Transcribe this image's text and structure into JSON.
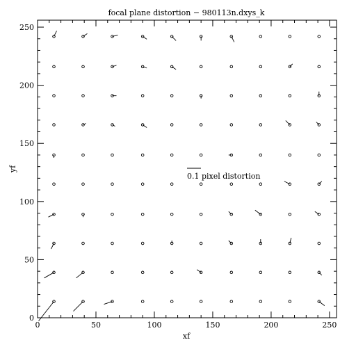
{
  "chart_data": {
    "type": "scatter",
    "title": "focal plane distortion − 980113n.dxys_k",
    "xlabel": "xf",
    "ylabel": "yf",
    "xlim": [
      0,
      256
    ],
    "ylim": [
      0,
      256
    ],
    "xticks": [
      0,
      50,
      100,
      150,
      200,
      250
    ],
    "yticks": [
      0,
      50,
      100,
      150,
      200,
      250
    ],
    "grid": false,
    "scale_bar_label": "0.1 pixel distortion",
    "scale_bar_length": 0.1,
    "grid_x": [
      14,
      39,
      64,
      90,
      115,
      140,
      166,
      191,
      216,
      241
    ],
    "grid_y": [
      14,
      39,
      64,
      89,
      115,
      140,
      166,
      191,
      216,
      242
    ],
    "vectors": [
      [
        [
          -0.11,
          -0.14
        ],
        [
          -0.07,
          -0.07
        ],
        [
          -0.06,
          -0.02
        ],
        [
          0.0,
          0.0
        ],
        [
          0.0,
          0.0
        ],
        [
          0.0,
          0.0
        ],
        [
          0.0,
          0.0
        ],
        [
          0.0,
          0.0
        ],
        [
          0.0,
          0.0
        ],
        [
          0.04,
          -0.03
        ]
      ],
      [
        [
          -0.07,
          -0.04
        ],
        [
          -0.05,
          -0.04
        ],
        [
          0.0,
          0.0
        ],
        [
          0.0,
          0.0
        ],
        [
          0.0,
          0.0
        ],
        [
          -0.03,
          0.02
        ],
        [
          0.0,
          0.0
        ],
        [
          0.0,
          0.0
        ],
        [
          0.0,
          0.0
        ],
        [
          0.02,
          -0.02
        ]
      ],
      [
        [
          -0.02,
          -0.04
        ],
        [
          0.0,
          0.0
        ],
        [
          0.0,
          0.0
        ],
        [
          0.0,
          0.0
        ],
        [
          0.0,
          0.02
        ],
        [
          0.0,
          0.0
        ],
        [
          -0.02,
          0.02
        ],
        [
          0.0,
          0.03
        ],
        [
          0.01,
          0.04
        ],
        [
          0.0,
          0.0
        ]
      ],
      [
        [
          -0.04,
          -0.02
        ],
        [
          0.0,
          -0.02
        ],
        [
          0.0,
          0.0
        ],
        [
          0.0,
          0.0
        ],
        [
          0.0,
          0.0
        ],
        [
          0.0,
          0.0
        ],
        [
          -0.02,
          0.02
        ],
        [
          -0.04,
          0.03
        ],
        [
          0.0,
          0.0
        ],
        [
          -0.03,
          0.02
        ]
      ],
      [
        [
          0.0,
          0.0
        ],
        [
          0.0,
          0.0
        ],
        [
          0.0,
          0.0
        ],
        [
          0.0,
          0.0
        ],
        [
          0.0,
          0.0
        ],
        [
          0.0,
          0.0
        ],
        [
          0.0,
          0.0
        ],
        [
          0.0,
          0.0
        ],
        [
          -0.04,
          0.02
        ],
        [
          0.02,
          0.02
        ]
      ],
      [
        [
          0.0,
          -0.02
        ],
        [
          0.0,
          0.0
        ],
        [
          0.0,
          0.0
        ],
        [
          0.0,
          0.0
        ],
        [
          0.0,
          0.0
        ],
        [
          0.0,
          0.0
        ],
        [
          -0.02,
          0.0
        ],
        [
          0.0,
          0.0
        ],
        [
          0.0,
          0.0
        ],
        [
          0.0,
          0.0
        ]
      ],
      [
        [
          0.0,
          0.0
        ],
        [
          0.02,
          0.01
        ],
        [
          0.02,
          -0.01
        ],
        [
          0.03,
          -0.02
        ],
        [
          0.0,
          0.0
        ],
        [
          0.0,
          0.0
        ],
        [
          0.0,
          0.0
        ],
        [
          0.0,
          0.0
        ],
        [
          -0.03,
          0.03
        ],
        [
          -0.02,
          0.02
        ]
      ],
      [
        [
          0.0,
          0.0
        ],
        [
          0.0,
          0.0
        ],
        [
          0.03,
          0.0
        ],
        [
          0.0,
          0.0
        ],
        [
          0.0,
          0.0
        ],
        [
          0.0,
          -0.02
        ],
        [
          0.0,
          0.0
        ],
        [
          0.0,
          0.0
        ],
        [
          0.0,
          0.0
        ],
        [
          0.0,
          0.03
        ]
      ],
      [
        [
          0.0,
          0.0
        ],
        [
          0.0,
          0.0
        ],
        [
          0.03,
          0.01
        ],
        [
          0.03,
          -0.01
        ],
        [
          0.03,
          -0.02
        ],
        [
          0.0,
          0.0
        ],
        [
          0.0,
          0.0
        ],
        [
          0.0,
          0.0
        ],
        [
          0.02,
          0.02
        ],
        [
          0.0,
          0.0
        ]
      ],
      [
        [
          0.02,
          0.04
        ],
        [
          0.03,
          0.02
        ],
        [
          0.04,
          0.01
        ],
        [
          0.03,
          -0.02
        ],
        [
          0.03,
          -0.03
        ],
        [
          0.0,
          -0.03
        ],
        [
          0.02,
          -0.04
        ],
        [
          0.0,
          0.0
        ],
        [
          0.0,
          0.0
        ],
        [
          0.0,
          0.0
        ]
      ]
    ]
  }
}
